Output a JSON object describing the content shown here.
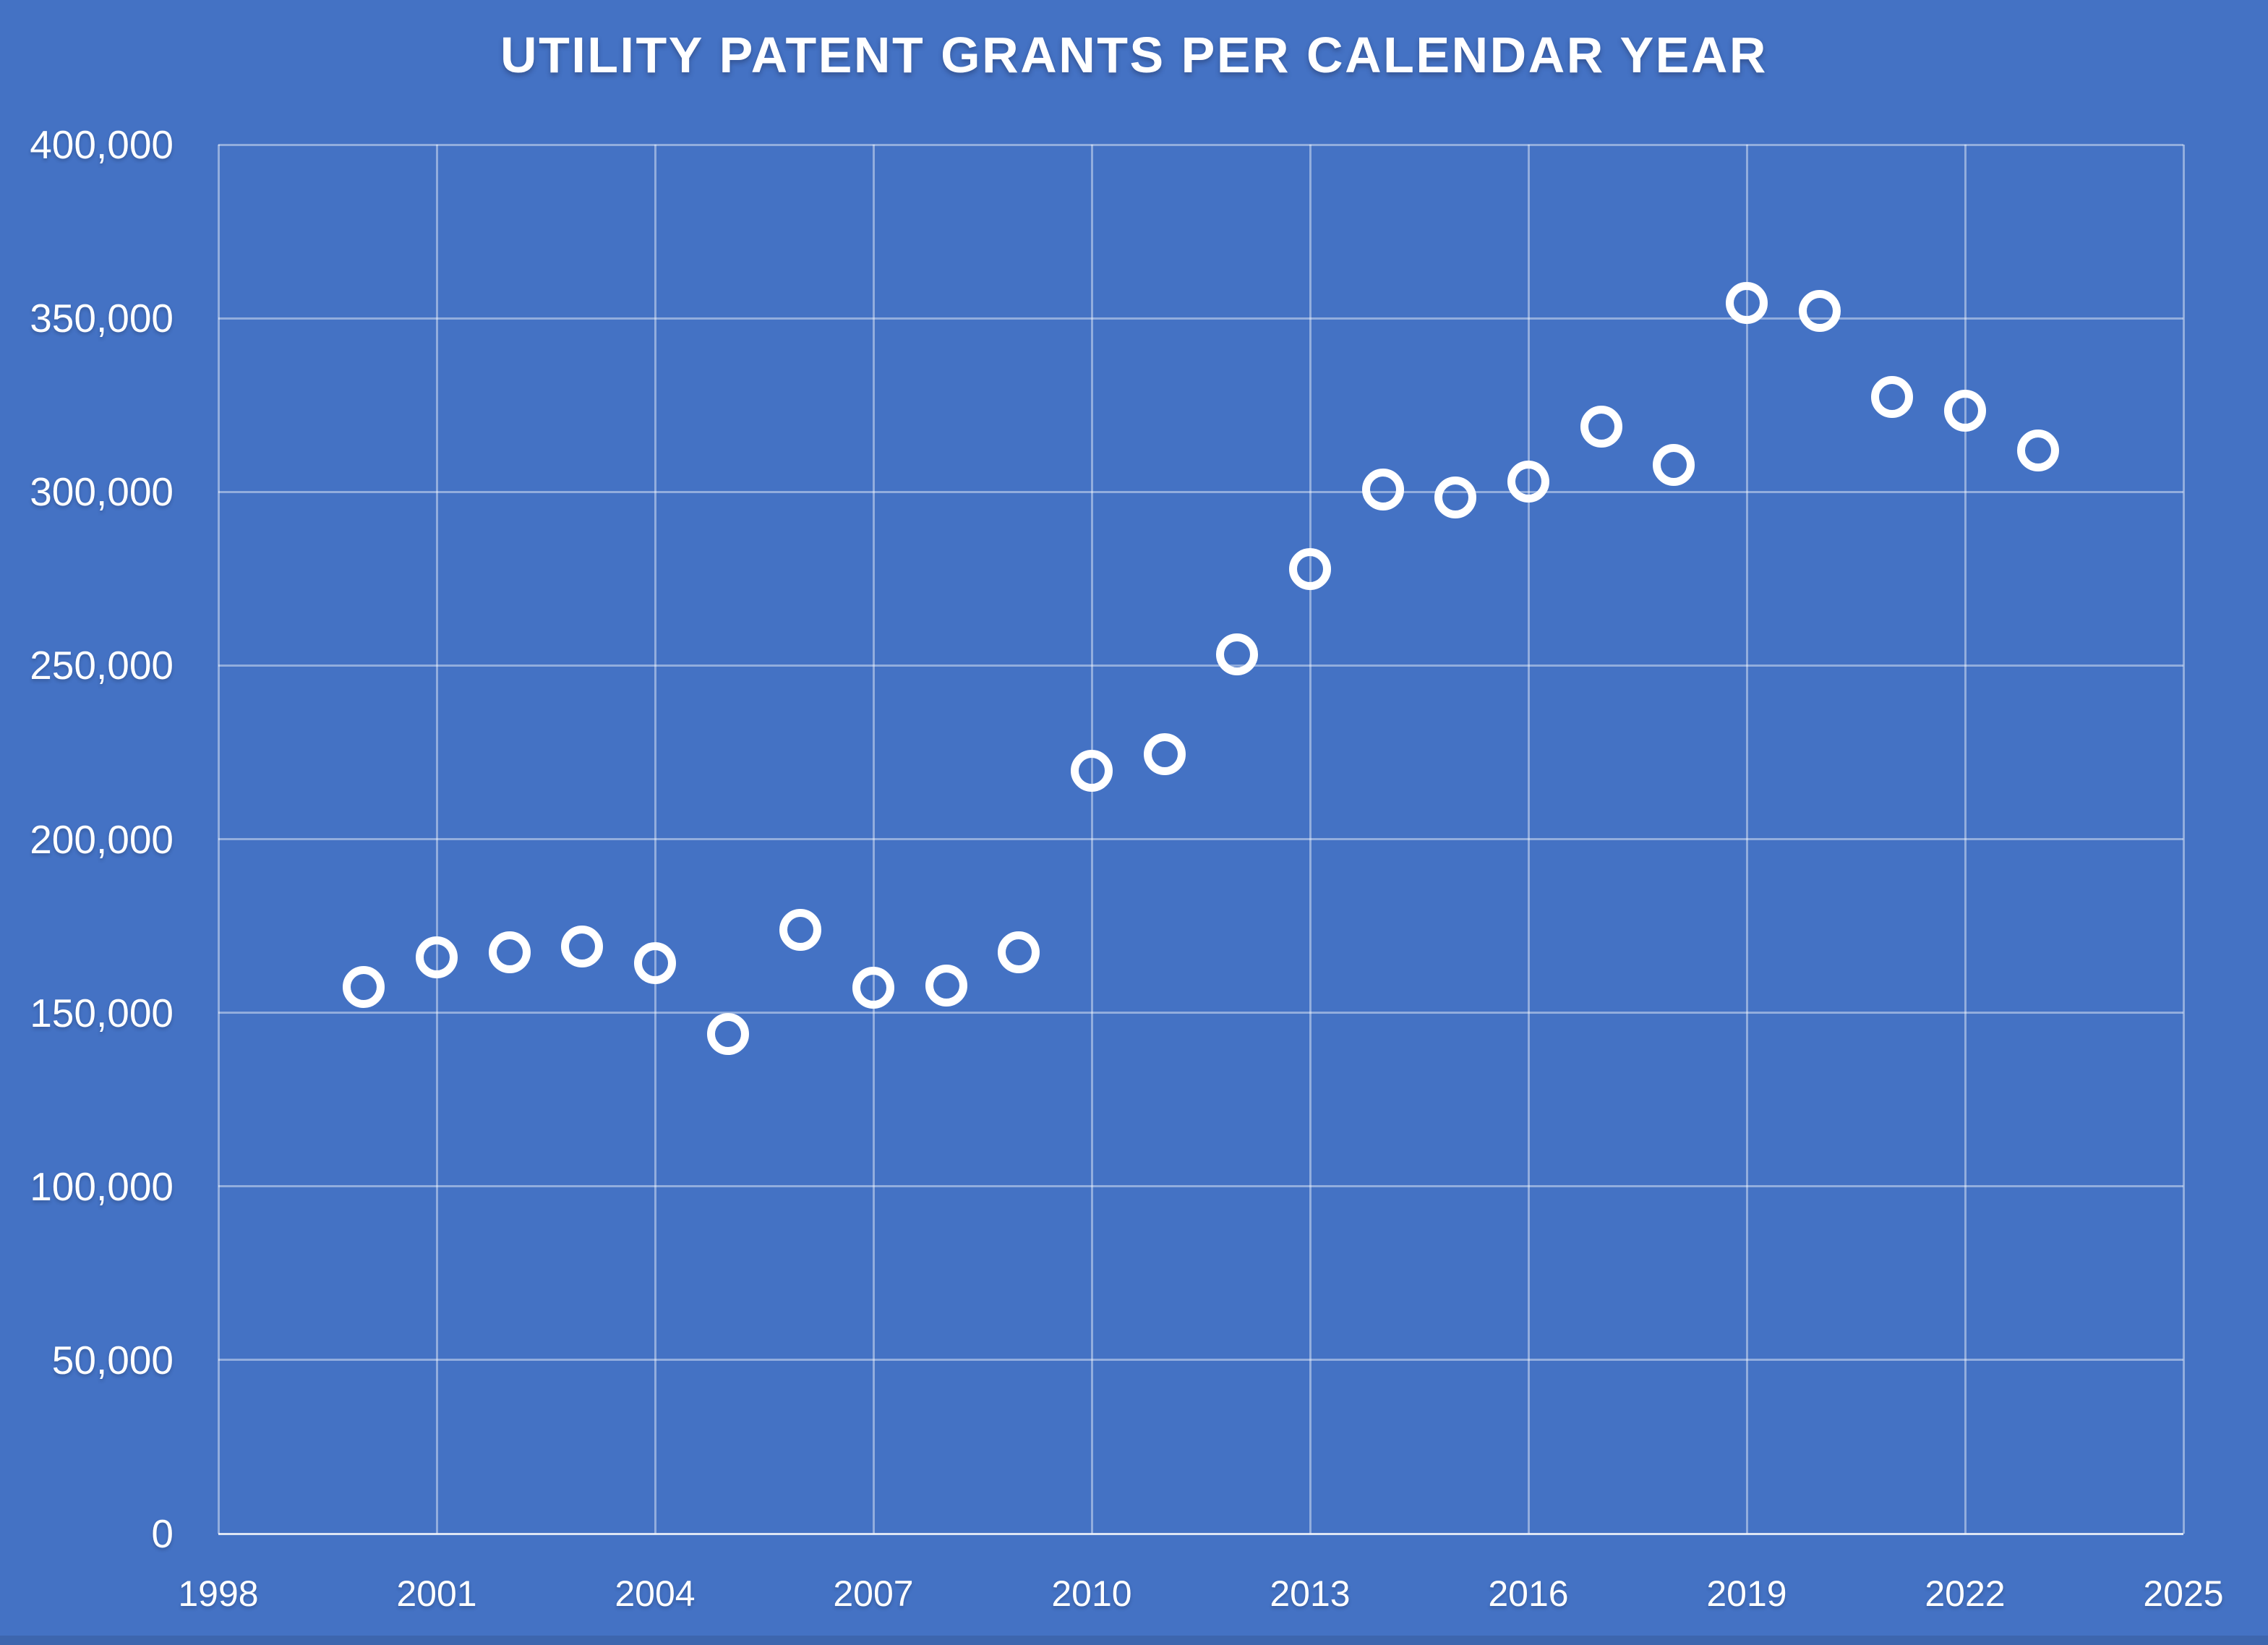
{
  "page": {
    "background_color": "#4472C4",
    "text_color": "#FFFFFF",
    "gridline_color": "rgba(255,255,255,0.42)",
    "axis_line_color": "rgba(255,255,255,0.82)",
    "bottom_strip_color": "#3D66AE"
  },
  "chart_data": {
    "type": "scatter",
    "title": "UTILITY PATENT GRANTS PER CALENDAR YEAR",
    "xlabel": "",
    "ylabel": "",
    "xlim": [
      1998,
      2025
    ],
    "ylim": [
      0,
      400000
    ],
    "x_ticks": [
      1998,
      2001,
      2004,
      2007,
      2010,
      2013,
      2016,
      2019,
      2022,
      2025
    ],
    "y_ticks": [
      0,
      50000,
      100000,
      150000,
      200000,
      250000,
      300000,
      350000,
      400000
    ],
    "grid": true,
    "legend": false,
    "marker": {
      "shape": "open-circle",
      "color": "#FFFFFF"
    },
    "points": [
      {
        "year": 2000,
        "value": 157494
      },
      {
        "year": 2001,
        "value": 166035
      },
      {
        "year": 2002,
        "value": 167331
      },
      {
        "year": 2003,
        "value": 169023
      },
      {
        "year": 2004,
        "value": 164290
      },
      {
        "year": 2005,
        "value": 143806
      },
      {
        "year": 2006,
        "value": 173772
      },
      {
        "year": 2007,
        "value": 157282
      },
      {
        "year": 2008,
        "value": 157772
      },
      {
        "year": 2009,
        "value": 167349
      },
      {
        "year": 2010,
        "value": 219614
      },
      {
        "year": 2011,
        "value": 224505
      },
      {
        "year": 2012,
        "value": 253155
      },
      {
        "year": 2013,
        "value": 277835
      },
      {
        "year": 2014,
        "value": 300678
      },
      {
        "year": 2015,
        "value": 298407
      },
      {
        "year": 2016,
        "value": 303049
      },
      {
        "year": 2017,
        "value": 318829
      },
      {
        "year": 2018,
        "value": 307759
      },
      {
        "year": 2019,
        "value": 354430
      },
      {
        "year": 2020,
        "value": 352013
      },
      {
        "year": 2021,
        "value": 327307
      },
      {
        "year": 2022,
        "value": 323410
      },
      {
        "year": 2023,
        "value": 312000
      }
    ]
  }
}
